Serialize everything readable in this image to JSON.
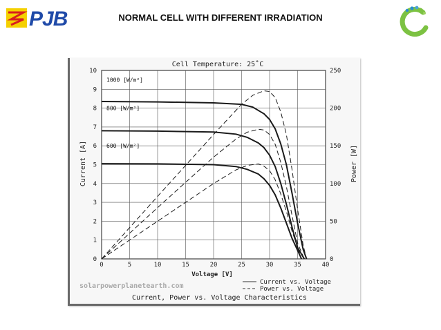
{
  "slide": {
    "title": "NORMAL CELL WITH DIFFERENT IRRADIATION",
    "logo_left": {
      "text": "PJB",
      "icon": "pjb-lightning-logo"
    },
    "logo_right": {
      "icon": "circular-leaf-logo",
      "colors": [
        "#7cc242",
        "#2a8fcf"
      ]
    }
  },
  "chart_data": {
    "type": "line",
    "title": "Cell Temperature:  25˚C",
    "xlabel": "Voltage [V]",
    "ylabel": "Current [A]",
    "y2label": "Power [W]",
    "footer": "Current, Power vs. Voltage Characteristics",
    "watermark": "solarpowerplanetearth.com",
    "xlim": [
      0,
      40
    ],
    "ylim": [
      0,
      10
    ],
    "y2lim": [
      0,
      250
    ],
    "xticks": [
      0,
      5,
      10,
      15,
      20,
      25,
      30,
      35,
      40
    ],
    "yticks": [
      0,
      1,
      2,
      3,
      4,
      5,
      6,
      7,
      8,
      9,
      10
    ],
    "y2ticks": [
      0,
      50,
      100,
      150,
      200,
      250
    ],
    "grid": true,
    "legend": [
      {
        "label": "Current vs. Voltage",
        "style": "solid"
      },
      {
        "label": "Power vs. Voltage",
        "style": "dashed"
      }
    ],
    "annotations": [
      "1000 [W/m²]",
      "800 [W/m²]",
      "600 [W/m²]"
    ],
    "series": [
      {
        "label_index": 0,
        "kind": "current",
        "x": [
          0,
          10,
          20,
          25,
          27,
          29,
          30,
          31,
          32,
          33,
          34,
          35,
          36,
          36.6
        ],
        "y": [
          8.35,
          8.33,
          8.28,
          8.2,
          8.05,
          7.7,
          7.4,
          6.9,
          6.1,
          5.0,
          3.5,
          1.9,
          0.5,
          0
        ]
      },
      {
        "label_index": 0,
        "kind": "power",
        "x": [
          0,
          10,
          20,
          25,
          27,
          29,
          30,
          31,
          32,
          33,
          34,
          35,
          36,
          36.6
        ],
        "y": [
          0,
          83,
          165,
          205,
          217,
          223,
          222,
          214,
          195,
          165,
          119,
          66,
          18,
          0
        ]
      },
      {
        "label_index": 1,
        "kind": "current",
        "x": [
          0,
          10,
          20,
          24,
          26,
          28,
          29,
          30,
          31,
          32,
          33,
          34,
          35,
          36.2
        ],
        "y": [
          6.8,
          6.78,
          6.73,
          6.62,
          6.45,
          6.15,
          5.9,
          5.5,
          4.9,
          4.0,
          2.9,
          1.7,
          0.6,
          0
        ]
      },
      {
        "label_index": 1,
        "kind": "power",
        "x": [
          0,
          10,
          20,
          24,
          26,
          28,
          29,
          30,
          31,
          32,
          33,
          34,
          35,
          36.2
        ],
        "y": [
          0,
          68,
          135,
          159,
          168,
          172,
          171,
          165,
          152,
          128,
          96,
          58,
          21,
          0
        ]
      },
      {
        "label_index": 2,
        "kind": "current",
        "x": [
          0,
          10,
          20,
          24,
          26,
          28,
          29,
          30,
          31,
          32,
          33,
          34,
          35.7
        ],
        "y": [
          5.05,
          5.04,
          5.0,
          4.9,
          4.75,
          4.5,
          4.25,
          3.9,
          3.4,
          2.7,
          1.9,
          1.1,
          0
        ]
      },
      {
        "label_index": 2,
        "kind": "power",
        "x": [
          0,
          10,
          20,
          24,
          26,
          28,
          29,
          30,
          31,
          32,
          33,
          34,
          35.7
        ],
        "y": [
          0,
          50,
          100,
          118,
          124,
          126,
          123,
          117,
          105,
          86,
          63,
          37,
          0
        ]
      }
    ]
  }
}
